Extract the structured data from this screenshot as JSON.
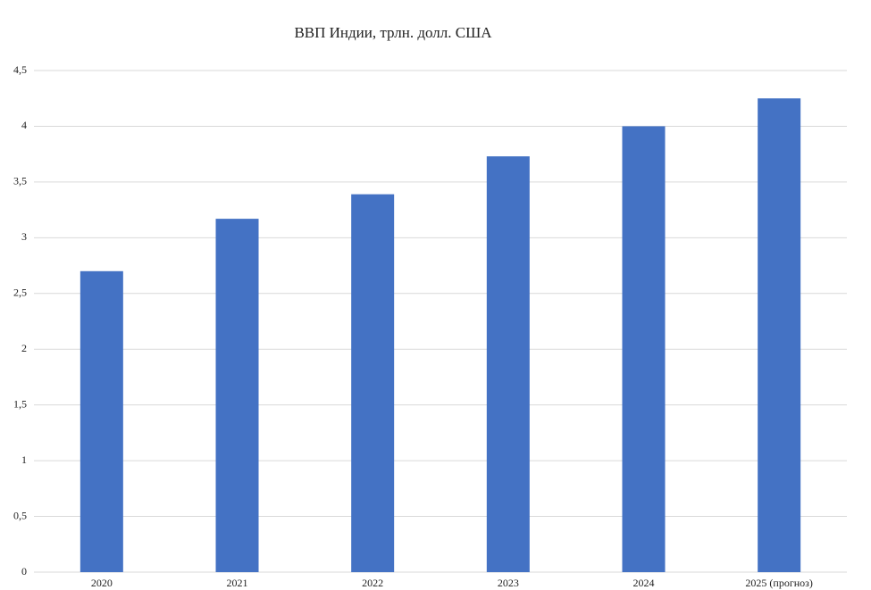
{
  "chart_data": {
    "type": "bar",
    "title": "ВВП Индии, трлн. долл. США",
    "categories": [
      "2020",
      "2021",
      "2022",
      "2023",
      "2024",
      "2025 (прогноз)"
    ],
    "values": [
      2.7,
      3.17,
      3.39,
      3.73,
      4.0,
      4.25
    ],
    "color": "#4472c4",
    "ylim": [
      0,
      4.5
    ],
    "yticks": [
      0,
      {
        "value": 0.5,
        "label": "0,5"
      },
      1,
      {
        "value": 1.5,
        "label": "1,5"
      },
      2,
      {
        "value": 2.5,
        "label": "2,5"
      },
      3,
      {
        "value": 3.5,
        "label": "3,5"
      },
      4,
      {
        "value": 4.5,
        "label": "4,5"
      }
    ],
    "grid": true
  }
}
